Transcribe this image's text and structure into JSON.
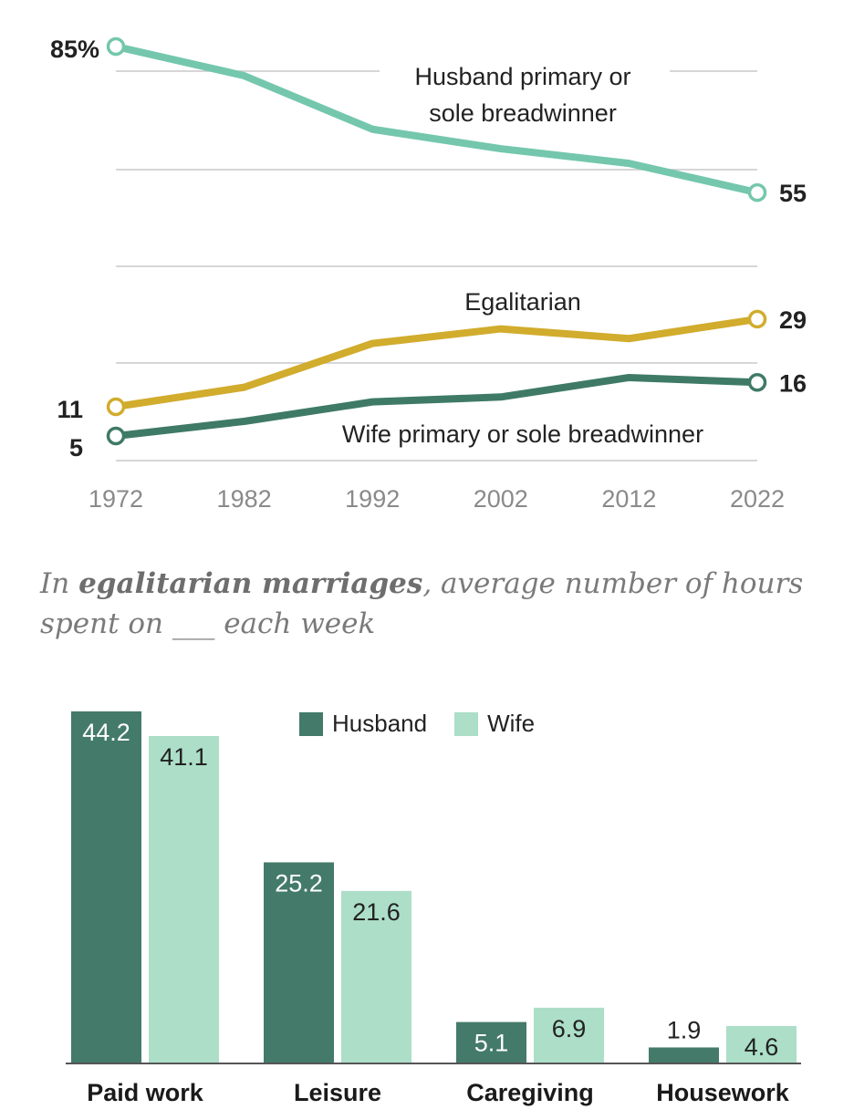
{
  "chart_data": [
    {
      "type": "line",
      "x": [
        1972,
        1982,
        1992,
        2002,
        2012,
        2022
      ],
      "xticklabels": [
        "1972",
        "1982",
        "1992",
        "2002",
        "2012",
        "2022"
      ],
      "ylim": [
        0,
        85
      ],
      "series": [
        {
          "name": "Husband primary or sole breadwinner",
          "label_lines": [
            "Husband primary or",
            "sole breadwinner"
          ],
          "values": [
            85,
            79,
            68,
            64,
            61,
            55
          ],
          "start_label": "85%",
          "end_label": "55",
          "color": "#74c7ac"
        },
        {
          "name": "Egalitarian",
          "label_lines": [
            "Egalitarian"
          ],
          "values": [
            11,
            15,
            24,
            27,
            25,
            29
          ],
          "start_label": "11",
          "end_label": "29",
          "color": "#d1ac2d"
        },
        {
          "name": "Wife primary or sole breadwinner",
          "label_lines": [
            "Wife primary or sole breadwinner"
          ],
          "values": [
            5,
            8,
            12,
            13,
            17,
            16
          ],
          "start_label": "5",
          "end_label": "16",
          "color": "#3f7a67"
        }
      ]
    },
    {
      "type": "bar",
      "title_parts": [
        "In ",
        "egalitarian marriages",
        ", average number of hours spent on ___ each week"
      ],
      "categories": [
        "Paid work",
        "Leisure",
        "Caregiving",
        "Housework"
      ],
      "ylim": [
        0,
        44.2
      ],
      "series": [
        {
          "name": "Husband",
          "values": [
            44.2,
            25.2,
            5.1,
            1.9
          ],
          "labels": [
            "44.2",
            "25.2",
            "5.1",
            "1.9"
          ],
          "color": "#447a6a"
        },
        {
          "name": "Wife",
          "values": [
            41.1,
            21.6,
            6.9,
            4.6
          ],
          "labels": [
            "41.1",
            "21.6",
            "6.9",
            "4.6"
          ],
          "color": "#acdec8"
        }
      ]
    }
  ]
}
